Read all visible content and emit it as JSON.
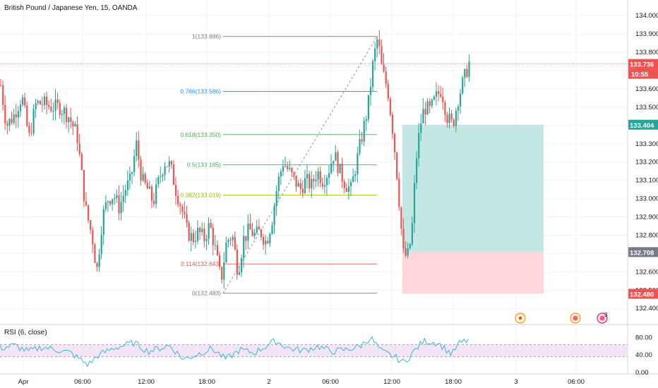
{
  "title": "British Pound / Japanese Yen, 15, OANDA",
  "rsi_label": "RSI (6, close)",
  "colors": {
    "up": "#26a69a",
    "down": "#ef5350",
    "grid": "#f0f3fa",
    "rsi_line": "#3ab8d6",
    "rsi_band": "#f3e5f5",
    "target_zone": "#b2dfdb",
    "stop_zone": "#ffcdd2",
    "fib_1": "#787b86",
    "fib_0786": "#2196f3",
    "fib_0618": "#4caf50",
    "fib_05": "#4caf50",
    "fib_0382": "#9fb800",
    "fib_0114": "#ef5350",
    "fib_0": "#787b86"
  },
  "price_axis": {
    "ticks": [
      "134.000",
      "133.900",
      "133.800",
      "133.700",
      "133.600",
      "133.500",
      "133.400",
      "133.300",
      "133.200",
      "133.100",
      "133.000",
      "132.900",
      "132.800",
      "132.700",
      "132.600",
      "132.500",
      "132.400"
    ],
    "last_price": "133.736",
    "countdown": "10:55",
    "target_price": "133.404",
    "entry_price": "132.708",
    "stop_price": "132.480"
  },
  "rsi_axis": {
    "ticks": [
      "80.00",
      "40.00",
      "0.00"
    ]
  },
  "time_axis": {
    "ticks": [
      "Apr",
      "06:00",
      "12:00",
      "18:00",
      "2",
      "06:00",
      "12:00",
      "18:00",
      "3",
      "06:00"
    ]
  },
  "fib_levels": [
    {
      "label": "1(133.886)",
      "ratio": 1
    },
    {
      "label": "0.786(133.586)",
      "ratio": 0.786
    },
    {
      "label": "0.618(133.350)",
      "ratio": 0.618
    },
    {
      "label": "0.5(133.185)",
      "ratio": 0.5
    },
    {
      "label": "0.382(133.019)",
      "ratio": 0.382
    },
    {
      "label": "0.114(132.643)",
      "ratio": 0.114
    },
    {
      "label": "0(132.483)",
      "ratio": 0
    }
  ],
  "event_badge_count": "3",
  "chart_data": {
    "type": "candlestick",
    "title": "British Pound / Japanese Yen, 15, OANDA",
    "ylim": [
      132.32,
      134.07
    ],
    "fib_retracement": {
      "high": 133.886,
      "low": 132.483
    },
    "position": {
      "entry": 132.708,
      "target": 133.404,
      "stop": 132.48
    },
    "last_price": 133.736,
    "rsi": {
      "period": 6,
      "levels": [
        40,
        60
      ],
      "ylim": [
        0,
        100
      ]
    },
    "candles_close_anchor": [
      [
        0,
        133.62
      ],
      [
        8,
        133.4
      ],
      [
        18,
        133.45
      ],
      [
        30,
        133.56
      ],
      [
        40,
        133.33
      ],
      [
        50,
        133.52
      ],
      [
        60,
        133.52
      ],
      [
        72,
        133.5
      ],
      [
        84,
        133.5
      ],
      [
        96,
        133.45
      ],
      [
        108,
        133.35
      ],
      [
        120,
        132.95
      ],
      [
        130,
        132.78
      ],
      [
        136,
        132.6
      ],
      [
        144,
        132.9
      ],
      [
        152,
        133.0
      ],
      [
        160,
        133.02
      ],
      [
        168,
        132.95
      ],
      [
        176,
        133.05
      ],
      [
        184,
        133.1
      ],
      [
        192,
        133.3
      ],
      [
        200,
        133.1
      ],
      [
        208,
        133.05
      ],
      [
        216,
        132.98
      ],
      [
        224,
        133.1
      ],
      [
        232,
        133.2
      ],
      [
        240,
        133.18
      ],
      [
        248,
        133.05
      ],
      [
        256,
        132.95
      ],
      [
        264,
        132.82
      ],
      [
        272,
        132.78
      ],
      [
        280,
        132.82
      ],
      [
        288,
        132.78
      ],
      [
        296,
        132.86
      ],
      [
        304,
        132.72
      ],
      [
        312,
        132.55
      ],
      [
        320,
        132.77
      ],
      [
        328,
        132.8
      ],
      [
        336,
        132.6
      ],
      [
        344,
        132.78
      ],
      [
        352,
        132.83
      ],
      [
        360,
        132.8
      ],
      [
        368,
        132.82
      ],
      [
        376,
        132.76
      ],
      [
        384,
        132.88
      ],
      [
        392,
        133.08
      ],
      [
        400,
        133.2
      ],
      [
        408,
        133.15
      ],
      [
        416,
        133.1
      ],
      [
        424,
        133.05
      ],
      [
        432,
        133.1
      ],
      [
        440,
        133.07
      ],
      [
        448,
        133.15
      ],
      [
        456,
        133.1
      ],
      [
        464,
        133.15
      ],
      [
        472,
        133.25
      ],
      [
        480,
        133.15
      ],
      [
        488,
        133.08
      ],
      [
        496,
        133.05
      ],
      [
        504,
        133.2
      ],
      [
        512,
        133.35
      ],
      [
        520,
        133.5
      ],
      [
        528,
        133.76
      ],
      [
        534,
        133.88
      ],
      [
        540,
        133.7
      ],
      [
        548,
        133.6
      ],
      [
        556,
        133.35
      ],
      [
        562,
        133.1
      ],
      [
        570,
        132.7
      ],
      [
        576,
        132.68
      ],
      [
        582,
        132.8
      ],
      [
        588,
        133.2
      ],
      [
        594,
        133.4
      ],
      [
        600,
        133.5
      ],
      [
        608,
        133.48
      ],
      [
        616,
        133.55
      ],
      [
        624,
        133.6
      ],
      [
        632,
        133.45
      ],
      [
        640,
        133.4
      ],
      [
        648,
        133.55
      ],
      [
        656,
        133.65
      ],
      [
        664,
        133.75
      ]
    ],
    "rsi_values_anchor": [
      [
        0,
        55
      ],
      [
        20,
        62
      ],
      [
        40,
        48
      ],
      [
        60,
        58
      ],
      [
        80,
        52
      ],
      [
        100,
        45
      ],
      [
        115,
        28
      ],
      [
        125,
        18
      ],
      [
        140,
        40
      ],
      [
        160,
        55
      ],
      [
        190,
        68
      ],
      [
        210,
        48
      ],
      [
        240,
        62
      ],
      [
        260,
        30
      ],
      [
        280,
        42
      ],
      [
        300,
        55
      ],
      [
        320,
        30
      ],
      [
        340,
        52
      ],
      [
        360,
        45
      ],
      [
        390,
        72
      ],
      [
        410,
        55
      ],
      [
        430,
        50
      ],
      [
        450,
        60
      ],
      [
        470,
        48
      ],
      [
        490,
        52
      ],
      [
        510,
        60
      ],
      [
        525,
        80
      ],
      [
        540,
        48
      ],
      [
        560,
        35
      ],
      [
        572,
        22
      ],
      [
        590,
        55
      ],
      [
        600,
        72
      ],
      [
        620,
        68
      ],
      [
        640,
        42
      ],
      [
        650,
        66
      ],
      [
        664,
        75
      ]
    ]
  }
}
